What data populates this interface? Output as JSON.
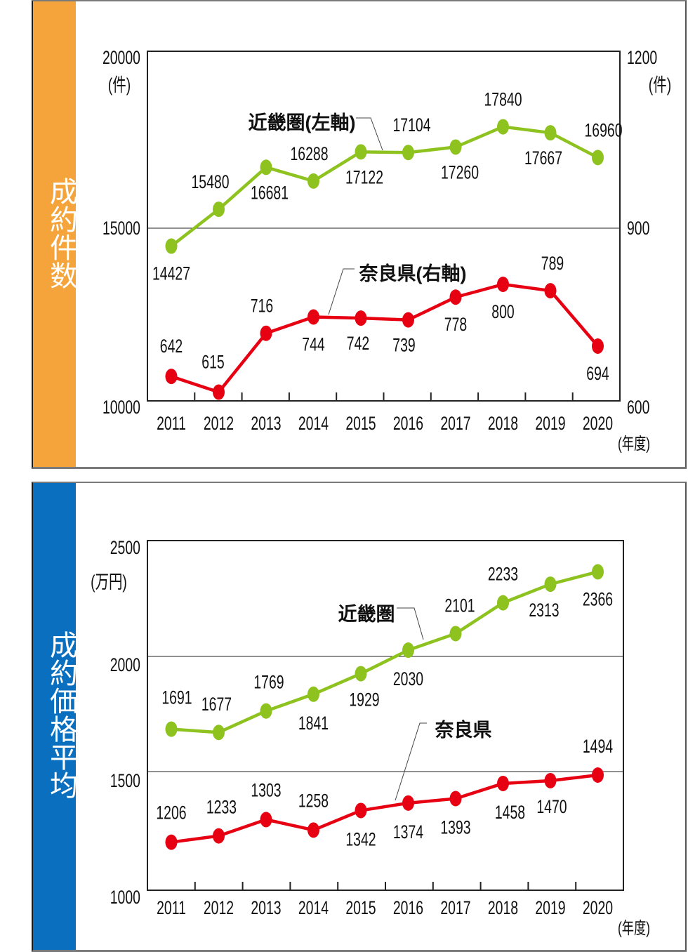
{
  "colors": {
    "panel1_sidebar": "#F4A43A",
    "panel2_sidebar": "#0A6FBF",
    "kinki": "#8DC21F",
    "nara": "#E60012"
  },
  "panels": [
    {
      "sidebar_title": "成約件数"
    },
    {
      "sidebar_title": "成約価格平均"
    }
  ],
  "chart_data": [
    {
      "type": "line",
      "title": "成約件数",
      "categories": [
        "2011",
        "2012",
        "2013",
        "2014",
        "2015",
        "2016",
        "2017",
        "2018",
        "2019",
        "2020"
      ],
      "xlabel": "(年度)",
      "y_left": {
        "label": "(件)",
        "ticks": [
          "20000",
          "15000",
          "10000"
        ],
        "range": [
          10000,
          20000
        ]
      },
      "y_right": {
        "label": "(件)",
        "ticks": [
          "1200",
          "900",
          "600"
        ],
        "range": [
          600,
          1200
        ]
      },
      "grid": "single horizontal line at middle tick",
      "series": [
        {
          "name": "近畿圏(左軸)",
          "axis": "left",
          "color": "#8DC21F",
          "values": [
            14427,
            15480,
            16681,
            16288,
            17122,
            17104,
            17260,
            17840,
            17667,
            16960
          ]
        },
        {
          "name": "奈良県(右軸)",
          "axis": "right",
          "color": "#E60012",
          "values": [
            642,
            615,
            716,
            744,
            742,
            739,
            778,
            800,
            789,
            694
          ]
        }
      ]
    },
    {
      "type": "line",
      "title": "成約価格平均",
      "categories": [
        "2011",
        "2012",
        "2013",
        "2014",
        "2015",
        "2016",
        "2017",
        "2018",
        "2019",
        "2020"
      ],
      "xlabel": "(年度)",
      "y_left": {
        "label": "(万円)",
        "ticks": [
          "2500",
          "2000",
          "1500",
          "1000"
        ],
        "range": [
          1000,
          2500
        ]
      },
      "grid": "horizontal lines at 2000 and 1500",
      "series": [
        {
          "name": "近畿圏",
          "axis": "left",
          "color": "#8DC21F",
          "values": [
            1691,
            1677,
            1769,
            1841,
            1929,
            2030,
            2101,
            2233,
            2313,
            2366
          ]
        },
        {
          "name": "奈良県",
          "axis": "left",
          "color": "#E60012",
          "values": [
            1206,
            1233,
            1303,
            1258,
            1342,
            1374,
            1393,
            1458,
            1470,
            1494
          ]
        }
      ]
    }
  ]
}
